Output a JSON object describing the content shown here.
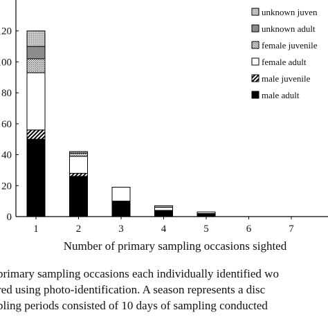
{
  "chart_data": {
    "type": "bar",
    "stacked": true,
    "categories": [
      "1",
      "2",
      "3",
      "4",
      "5",
      "6",
      "7"
    ],
    "xlabel": "Number of primary sampling occasions sighted",
    "ylabel": "",
    "ylim": [
      0,
      140
    ],
    "y_tick_labels": [
      "0",
      "20",
      "40",
      "60",
      "80",
      "100",
      "120"
    ],
    "y_ticks": [
      0,
      20,
      40,
      60,
      80,
      100,
      120
    ],
    "grid": false,
    "legend_position": "top-right",
    "series": [
      {
        "name": "male adult",
        "pattern": "solid-black",
        "values": [
          50,
          26,
          10,
          4,
          2,
          0,
          0
        ]
      },
      {
        "name": "male juvenile",
        "pattern": "diagonal-hatch",
        "values": [
          6,
          2,
          0,
          0,
          0,
          0,
          0
        ]
      },
      {
        "name": "female adult",
        "pattern": "white",
        "values": [
          37,
          11,
          9,
          2,
          1,
          0,
          0
        ]
      },
      {
        "name": "female juvenile",
        "pattern": "dots",
        "values": [
          9,
          2,
          0,
          1,
          0,
          0,
          0
        ]
      },
      {
        "name": "unknown adult",
        "pattern": "gray",
        "values": [
          8,
          0,
          0,
          0,
          0,
          0,
          0
        ]
      },
      {
        "name": "unknown juvenile",
        "pattern": "light-gray-crosshatch",
        "values": [
          10,
          1,
          0,
          0,
          0,
          0,
          0
        ]
      }
    ],
    "legend_labels": [
      "unknown juven",
      "unknown adult",
      "female juvenile",
      "female adult",
      "male juvenile",
      "male adult"
    ]
  },
  "caption": {
    "lines": [
      "primary sampling occasions each individually identified wo",
      "red using photo-identification. A season represents a disc",
      "pling periods consisted of 10 days of sampling conducted"
    ]
  }
}
